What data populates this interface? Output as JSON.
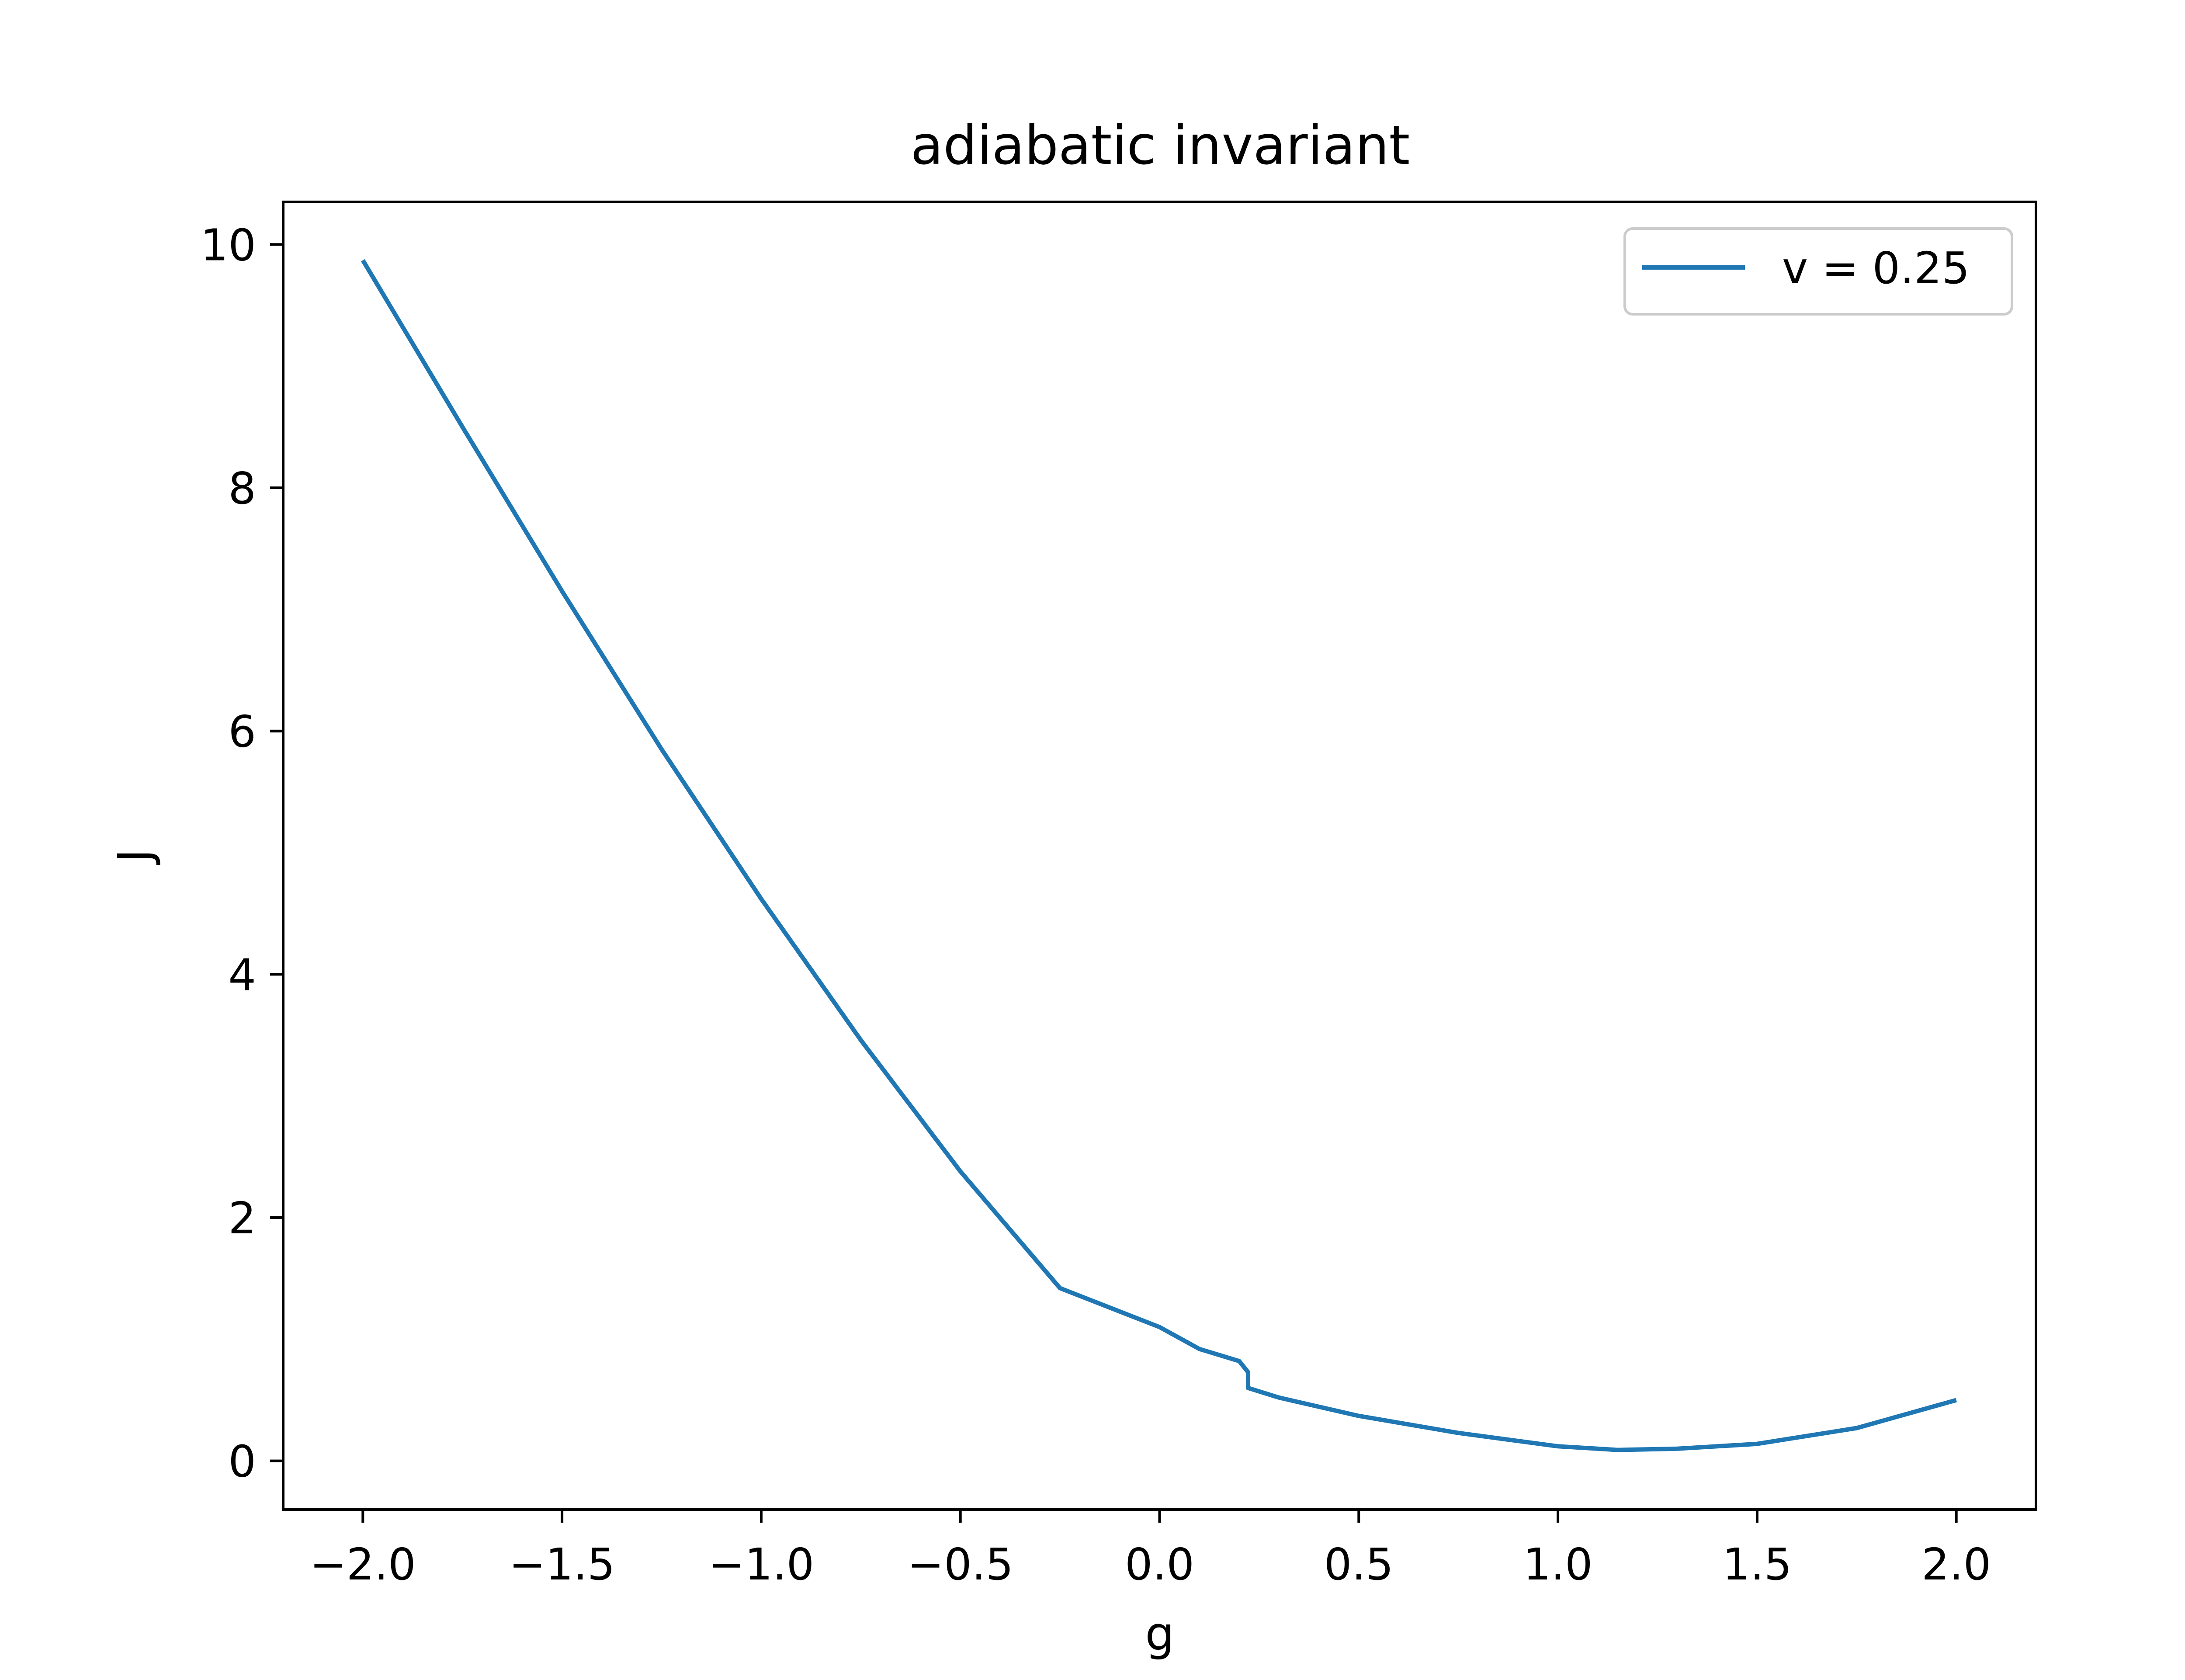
{
  "chart_data": {
    "type": "line",
    "title": "adiabatic invariant",
    "xlabel": "g",
    "ylabel": "J",
    "xlim": [
      -2.2,
      2.2
    ],
    "ylim": [
      -0.4,
      10.35
    ],
    "x_ticks": [
      -2.0,
      -1.5,
      -1.0,
      -0.5,
      0.0,
      0.5,
      1.0,
      1.5,
      2.0
    ],
    "x_tick_labels": [
      "−2.0",
      "−1.5",
      "−1.0",
      "−0.5",
      "0.0",
      "0.5",
      "1.0",
      "1.5",
      "2.0"
    ],
    "y_ticks": [
      0,
      2,
      4,
      6,
      8,
      10
    ],
    "y_tick_labels": [
      "0",
      "2",
      "4",
      "6",
      "8",
      "10"
    ],
    "grid": false,
    "legend_position": "top-right",
    "series": [
      {
        "name": "v = 0.25",
        "color": "#1f77b4",
        "points": [
          [
            -2.0,
            9.87
          ],
          [
            -1.75,
            8.5
          ],
          [
            -1.5,
            7.15
          ],
          [
            -1.25,
            5.85
          ],
          [
            -1.0,
            4.62
          ],
          [
            -0.75,
            3.46
          ],
          [
            -0.5,
            2.38
          ],
          [
            -0.25,
            1.42
          ],
          [
            0.0,
            1.1
          ],
          [
            0.1,
            0.92
          ],
          [
            0.2,
            0.82
          ],
          [
            0.222,
            0.73
          ],
          [
            0.222,
            0.6
          ],
          [
            0.3,
            0.52
          ],
          [
            0.5,
            0.37
          ],
          [
            0.75,
            0.23
          ],
          [
            1.0,
            0.12
          ],
          [
            1.15,
            0.09
          ],
          [
            1.3,
            0.1
          ],
          [
            1.5,
            0.14
          ],
          [
            1.75,
            0.27
          ],
          [
            2.0,
            0.5
          ]
        ]
      }
    ]
  }
}
